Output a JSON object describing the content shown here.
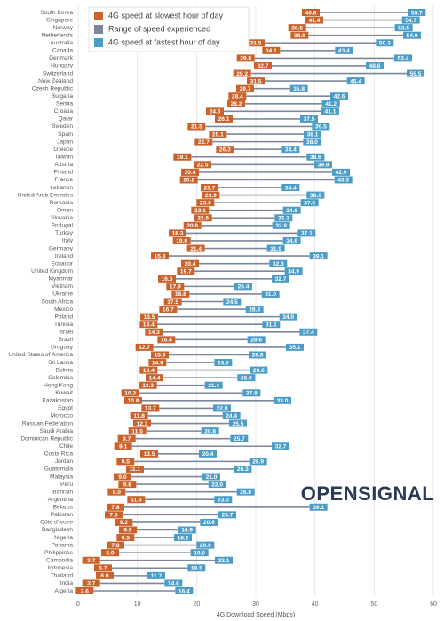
{
  "chart_data": {
    "type": "dumbbell",
    "categories": [
      "South Korea",
      "Singapore",
      "Norway",
      "Netherlands",
      "Australia",
      "Canada",
      "Denmark",
      "Hungary",
      "Switzerland",
      "New Zealand",
      "Czech Republic",
      "Bulgaria",
      "Serbia",
      "Croatia",
      "Qatar",
      "Sweden",
      "Spain",
      "Japan",
      "Greece",
      "Taiwan",
      "Austria",
      "Finland",
      "France",
      "Lebanon",
      "United Arab Emirates",
      "Romania",
      "Oman",
      "Slovakia",
      "Portugal",
      "Turkey",
      "Italy",
      "Germany",
      "Ireland",
      "Ecuador",
      "United Kingdom",
      "Myanmar",
      "Vietnam",
      "Ukraine",
      "South Africa",
      "Mexico",
      "Poland",
      "Tunisia",
      "Israel",
      "Brazil",
      "Uruguay",
      "United States of America",
      "Sri Lanka",
      "Bolivia",
      "Colombia",
      "Hong Kong",
      "Kuwait",
      "Kazakhstan",
      "Egypt",
      "Morocco",
      "Russian Federation",
      "Saudi Arabia",
      "Dominican Republic",
      "Chile",
      "Costa Rica",
      "Jordan",
      "Guatemala",
      "Malaysia",
      "Peru",
      "Bahrain",
      "Argentina",
      "Belarus",
      "Pakistan",
      "Côte d'Ivoire",
      "Bangladesh",
      "Nigeria",
      "Panama",
      "Philippines",
      "Cambodia",
      "Indonesia",
      "Thailand",
      "India",
      "Algeria"
    ],
    "series": [
      {
        "name": "4G speed at slowest hour of day",
        "color": "#c9632b",
        "values": [
          40.8,
          41.4,
          38.5,
          38.9,
          31.5,
          34.1,
          29.8,
          32.7,
          29.2,
          31.5,
          29.7,
          28.4,
          28.2,
          24.6,
          26.1,
          21.5,
          25.1,
          22.7,
          26.3,
          19.1,
          22.5,
          20.4,
          20.2,
          23.7,
          23.9,
          23.0,
          22.1,
          22.6,
          20.8,
          18.3,
          19.0,
          21.4,
          15.3,
          20.4,
          19.7,
          16.5,
          17.9,
          18.8,
          17.5,
          16.7,
          13.5,
          13.4,
          14.3,
          16.4,
          12.7,
          15.3,
          14.9,
          13.4,
          14.4,
          13.3,
          10.3,
          10.8,
          13.7,
          11.8,
          12.3,
          11.5,
          9.7,
          9.1,
          13.5,
          9.5,
          11.1,
          9.0,
          9.8,
          8.0,
          11.3,
          7.8,
          7.5,
          9.2,
          9.9,
          9.5,
          7.8,
          6.9,
          3.7,
          5.7,
          6.0,
          3.7,
          2.6
        ],
        "value_labels": [
          "40.8",
          "41.4",
          "38.5",
          "38.9",
          "31.5",
          "34.1",
          "29.8",
          "32.7",
          "29.2",
          "31.5",
          "29.7",
          "28.4",
          "28.2",
          "24.6",
          "26.1",
          "21.5",
          "25.1",
          "22.7",
          "26.3",
          "19.1",
          "22.5",
          "20.4",
          "20.2",
          "23.7",
          "23.9",
          "23.0",
          "22.1",
          "22.6",
          "20.8",
          "18.3",
          "19.0",
          "21.4",
          "15.3",
          "20.4",
          "19.7",
          "16.5",
          "17.9",
          "18.8",
          "17.5",
          "16.7",
          "13.5",
          "13.4",
          "14.3",
          "16.4",
          "12.7",
          "15.3",
          "14.9",
          "13.4",
          "14.4",
          "13.3",
          "10.3",
          "10.8",
          "13.7",
          "11.8",
          "12.3",
          "11.5",
          "9.7",
          "9.1",
          "13.5",
          "9.5",
          "11.1",
          "9.0",
          "9.8",
          "8.0",
          "11.3",
          "7.8",
          "7.5",
          "9.2",
          "9.9",
          "9.5",
          "7.8",
          "6.9",
          "3.7",
          "5.7",
          "6.0",
          "3.7",
          "2.6"
        ]
      },
      {
        "name": "4G speed at fastest hour of day",
        "color": "#4b9dc8",
        "values": [
          55.7,
          54.7,
          53.5,
          54.9,
          50.3,
          43.4,
          53.4,
          48.6,
          55.5,
          45.4,
          35.8,
          42.6,
          41.2,
          41.1,
          37.5,
          39.5,
          38.1,
          38.0,
          34.4,
          38.6,
          39.9,
          42.9,
          43.3,
          34.4,
          38.6,
          37.6,
          34.6,
          33.2,
          32.8,
          37.1,
          34.6,
          31.9,
          39.1,
          32.3,
          34.9,
          32.7,
          26.4,
          31.0,
          24.5,
          28.3,
          34.0,
          31.1,
          37.4,
          28.6,
          35.1,
          28.8,
          23.0,
          29.0,
          26.9,
          21.4,
          27.8,
          33.0,
          22.8,
          24.4,
          25.5,
          20.8,
          25.7,
          32.7,
          20.4,
          28.9,
          26.3,
          21.0,
          22.0,
          26.8,
          23.0,
          39.1,
          23.7,
          20.6,
          16.9,
          16.2,
          20.0,
          19.0,
          23.1,
          18.5,
          11.7,
          14.6,
          16.4
        ],
        "value_labels": [
          "55.7",
          "54.7",
          "53.5",
          "54.9",
          "50.3",
          "43.4",
          "53.4",
          "48.6",
          "55.5",
          "45.4",
          "35.8",
          "42.6",
          "41.2",
          "41.1",
          "37.5",
          "39.5",
          "38.1",
          "38.0",
          "34.4",
          "38.6",
          "39.9",
          "42.9",
          "43.3",
          "34.4",
          "38.6",
          "37.6",
          "34.6",
          "33.2",
          "32.8",
          "37.1",
          "34.6",
          "31.9",
          "39.1",
          "32.3",
          "34.9",
          "32.7",
          "26.4",
          "31.0",
          "24.5",
          "28.3",
          "34.0",
          "31.1",
          "37.4",
          "28.6",
          "35.1",
          "28.8",
          "23.0",
          "29.0",
          "26.9",
          "21.4",
          "27.8",
          "33.0",
          "22.8",
          "24.4",
          "25.5",
          "20.8",
          "25.7",
          "32.7",
          "20.4",
          "28.9",
          "26.3",
          "21.0",
          "22.0",
          "26.8",
          "23.0",
          "39.1",
          "23.7",
          "20.6",
          "16.9",
          "16.2",
          "20.0",
          "19.0",
          "23.1",
          "18.5",
          "11.7",
          "14.6",
          "16.4"
        ]
      }
    ],
    "range": {
      "name": "Range of speed experienced",
      "color": "#7d8799"
    },
    "legend_order": [
      0,
      "range",
      1
    ],
    "xlabel": "4G Download Speed (Mbps)",
    "xlim": [
      0,
      60
    ],
    "xticks": [
      0,
      10,
      20,
      30,
      40,
      50,
      60
    ],
    "grid": true,
    "logo": "OPENSIGNAL"
  }
}
